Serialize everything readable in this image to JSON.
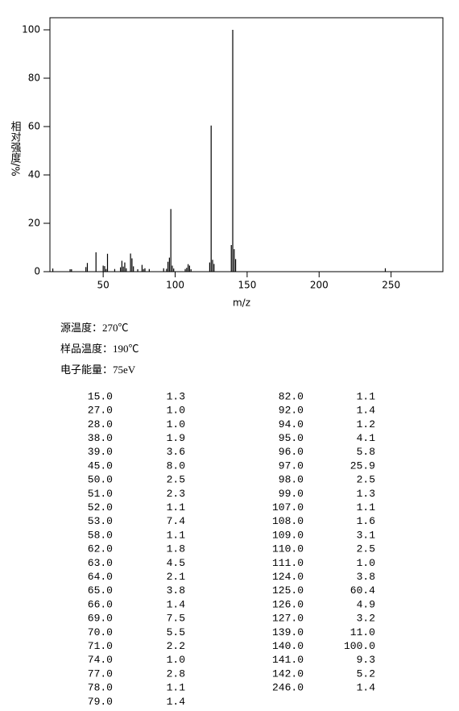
{
  "chart_data": {
    "type": "bar",
    "xlabel": "m/z",
    "ylabel": "相对强度/%",
    "x": [
      15,
      27,
      28,
      38,
      39,
      45,
      50,
      51,
      52,
      53,
      58,
      62,
      63,
      64,
      65,
      66,
      69,
      70,
      71,
      74,
      77,
      78,
      79,
      82,
      92,
      94,
      95,
      96,
      97,
      98,
      99,
      107,
      108,
      109,
      110,
      111,
      124,
      125,
      126,
      127,
      139,
      140,
      141,
      142,
      246
    ],
    "values": [
      1.3,
      1.0,
      1.0,
      1.9,
      3.6,
      8.0,
      2.5,
      2.3,
      1.1,
      7.4,
      1.1,
      1.8,
      4.5,
      2.1,
      3.8,
      1.4,
      7.5,
      5.5,
      2.2,
      1.0,
      2.8,
      1.1,
      1.4,
      1.1,
      1.4,
      1.2,
      4.1,
      5.8,
      25.9,
      2.5,
      1.3,
      1.1,
      1.6,
      3.1,
      2.5,
      1.0,
      3.8,
      60.4,
      4.9,
      3.2,
      11.0,
      100.0,
      9.3,
      5.2,
      1.4
    ],
    "color": "#000000",
    "xlim": [
      13,
      286
    ],
    "xticks": [
      50,
      100,
      150,
      200,
      250
    ],
    "ylim": [
      0,
      105
    ],
    "yticks": [
      0,
      20,
      40,
      60,
      80,
      100
    ]
  },
  "info": [
    "源温度：270℃",
    "样品温度：190℃",
    "电子能量：75eV"
  ],
  "table": {
    "rows": [
      [
        "15.0",
        "1.3"
      ],
      [
        "27.0",
        "1.0"
      ],
      [
        "28.0",
        "1.0"
      ],
      [
        "38.0",
        "1.9"
      ],
      [
        "39.0",
        "3.6"
      ],
      [
        "45.0",
        "8.0"
      ],
      [
        "50.0",
        "2.5"
      ],
      [
        "51.0",
        "2.3"
      ],
      [
        "52.0",
        "1.1"
      ],
      [
        "53.0",
        "7.4"
      ],
      [
        "58.0",
        "1.1"
      ],
      [
        "62.0",
        "1.8"
      ],
      [
        "63.0",
        "4.5"
      ],
      [
        "64.0",
        "2.1"
      ],
      [
        "65.0",
        "3.8"
      ],
      [
        "66.0",
        "1.4"
      ],
      [
        "69.0",
        "7.5"
      ],
      [
        "70.0",
        "5.5"
      ],
      [
        "71.0",
        "2.2"
      ],
      [
        "74.0",
        "1.0"
      ],
      [
        "77.0",
        "2.8"
      ],
      [
        "78.0",
        "1.1"
      ],
      [
        "79.0",
        "1.4"
      ],
      [
        "82.0",
        "1.1"
      ],
      [
        "92.0",
        "1.4"
      ],
      [
        "94.0",
        "1.2"
      ],
      [
        "95.0",
        "4.1"
      ],
      [
        "96.0",
        "5.8"
      ],
      [
        "97.0",
        "25.9"
      ],
      [
        "98.0",
        "2.5"
      ],
      [
        "99.0",
        "1.3"
      ],
      [
        "107.0",
        "1.1"
      ],
      [
        "108.0",
        "1.6"
      ],
      [
        "109.0",
        "3.1"
      ],
      [
        "110.0",
        "2.5"
      ],
      [
        "111.0",
        "1.0"
      ],
      [
        "124.0",
        "3.8"
      ],
      [
        "125.0",
        "60.4"
      ],
      [
        "126.0",
        "4.9"
      ],
      [
        "127.0",
        "3.2"
      ],
      [
        "139.0",
        "11.0"
      ],
      [
        "140.0",
        "100.0"
      ],
      [
        "141.0",
        "9.3"
      ],
      [
        "142.0",
        "5.2"
      ],
      [
        "246.0",
        "1.4"
      ]
    ]
  }
}
